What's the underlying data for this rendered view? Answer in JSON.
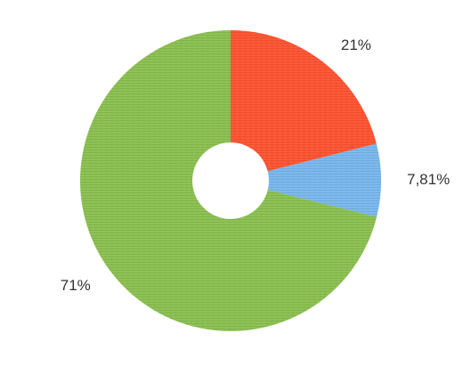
{
  "chart_data": {
    "type": "pie",
    "style": "donut",
    "slices": [
      {
        "label": "21%",
        "value": 21,
        "color": "#ff5533"
      },
      {
        "label": "7,81%",
        "value": 7.81,
        "color": "#7ab8ee"
      },
      {
        "label": "71%",
        "value": 71,
        "color": "#8cc152"
      }
    ],
    "start_angle_deg": 0,
    "direction": "clockwise",
    "legend": "none"
  }
}
